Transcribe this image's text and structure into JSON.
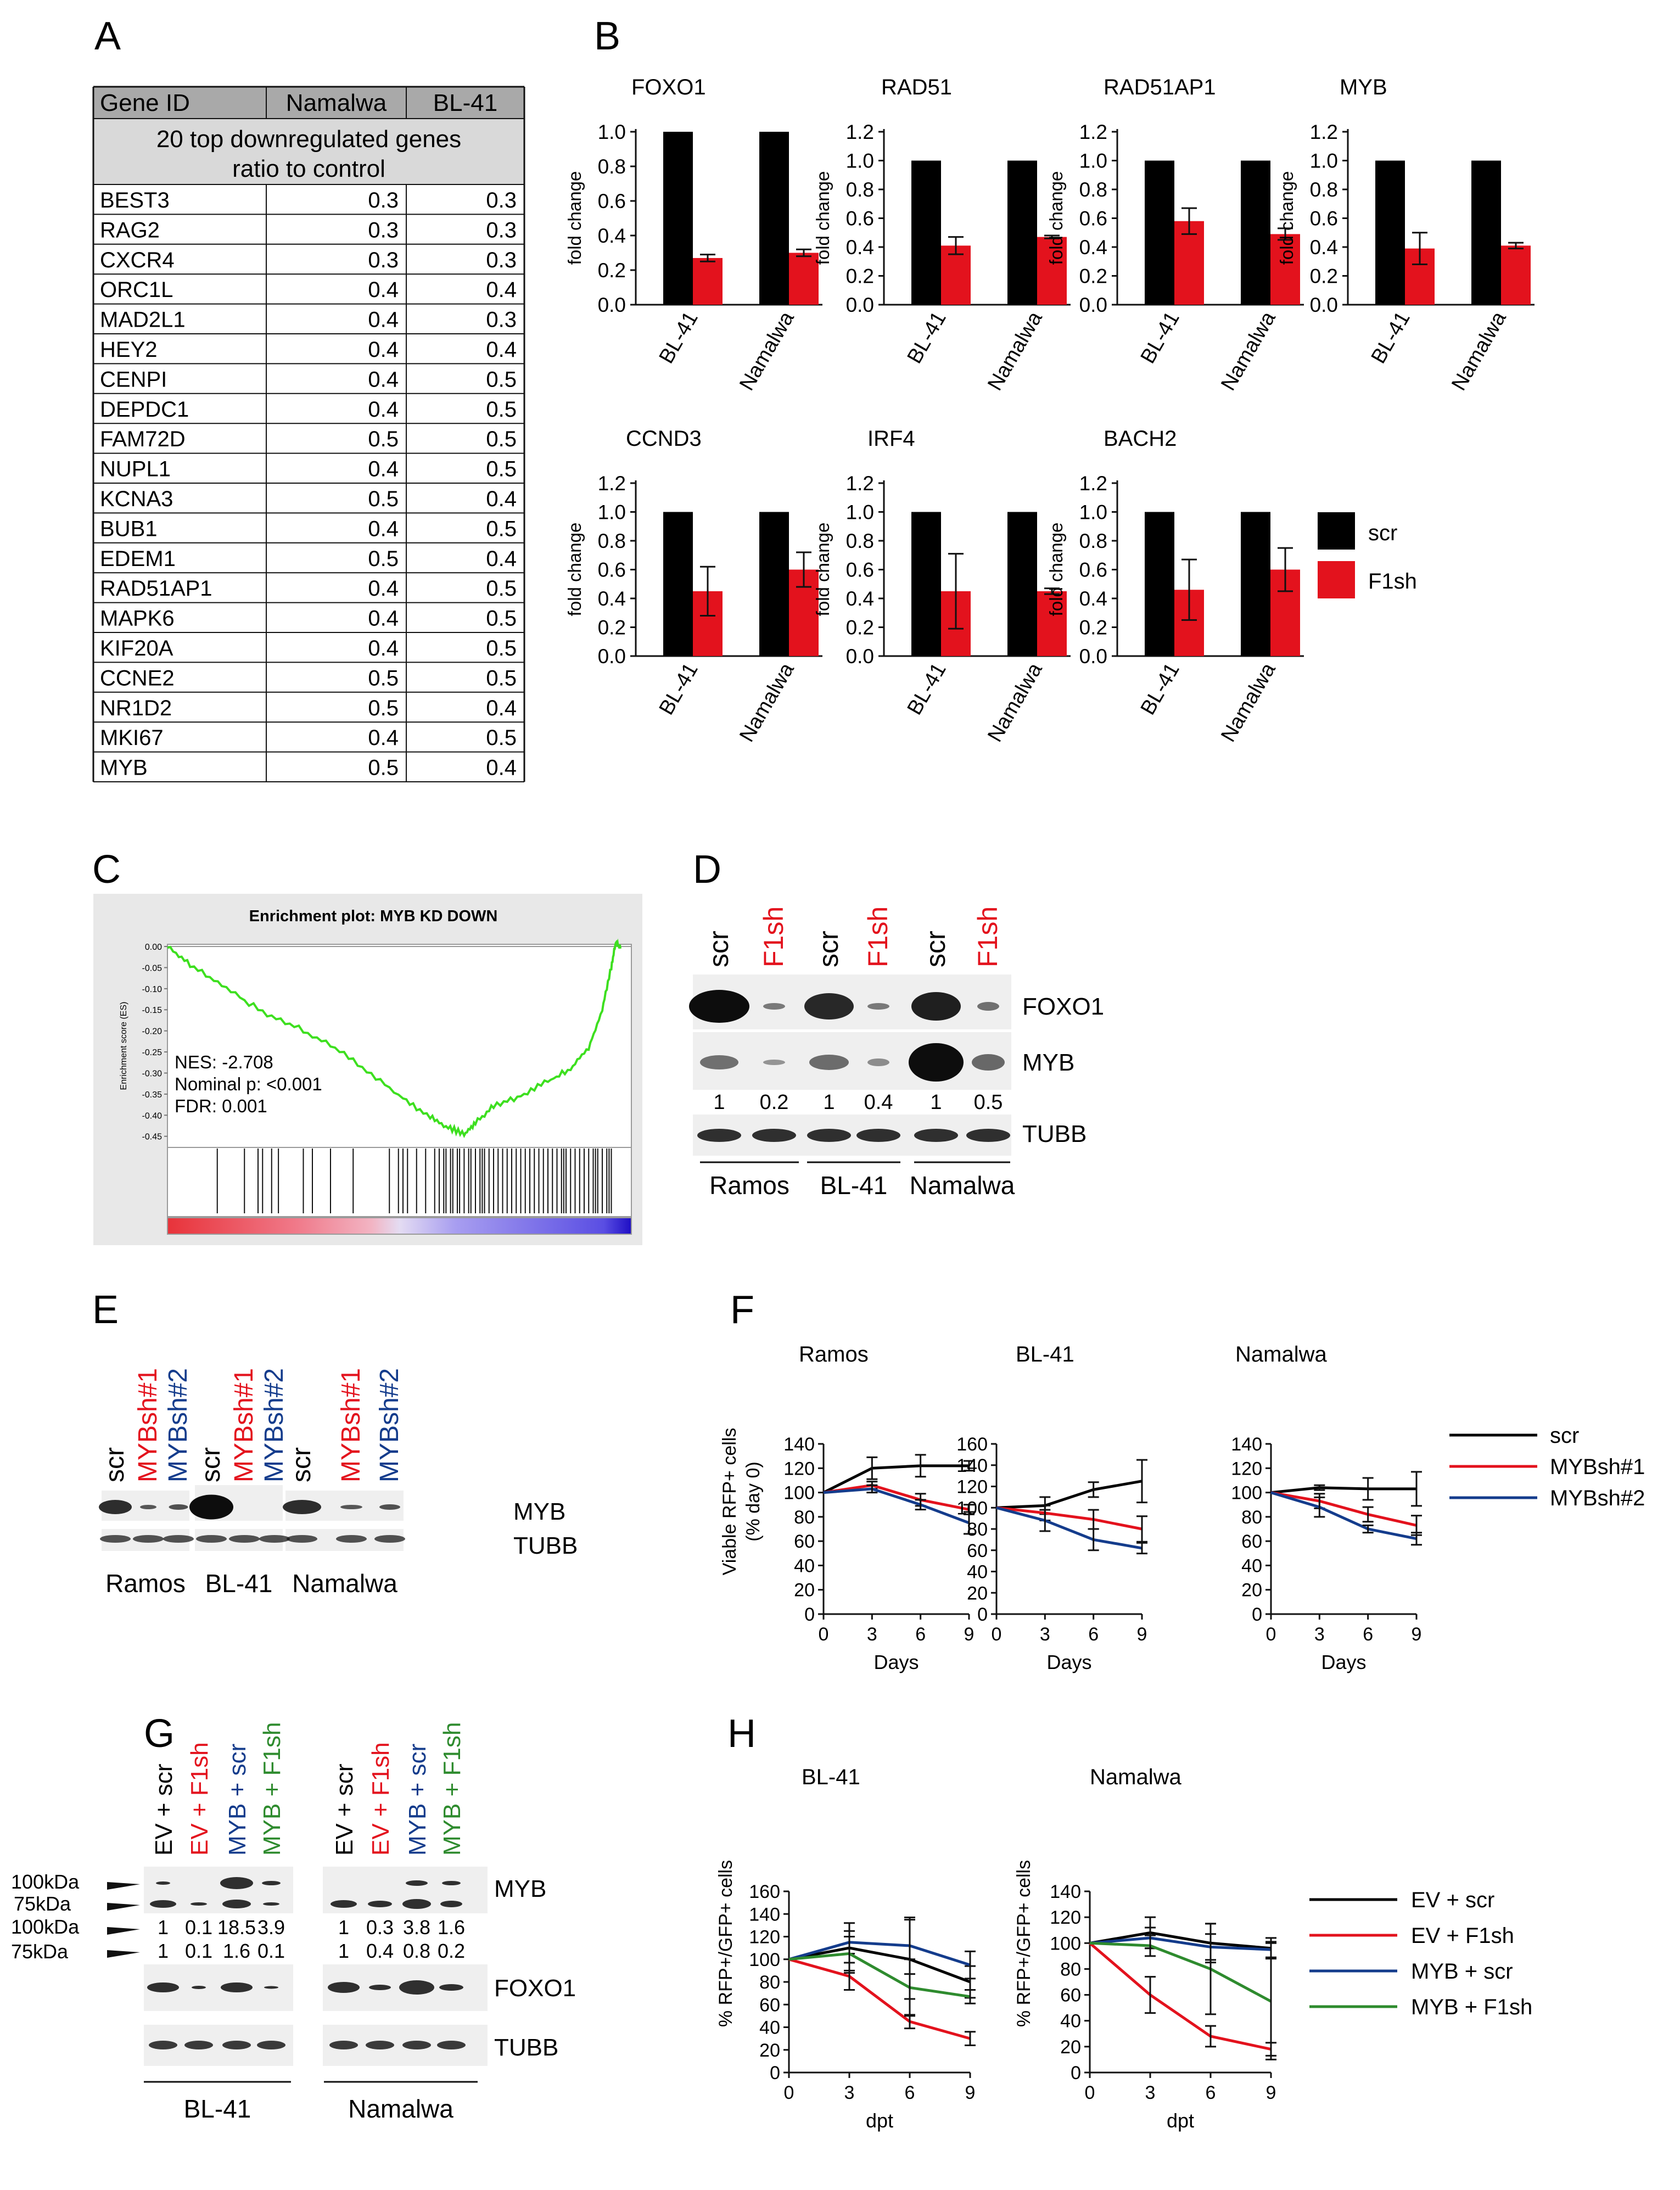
{
  "panel_letters": [
    "A",
    "B",
    "C",
    "D",
    "E",
    "F",
    "G",
    "H"
  ],
  "colors": {
    "scr": "#000000",
    "f1sh": "#e3121d",
    "mybsh1": "#e3121d",
    "mybsh2": "#143c8c",
    "ev_scr": "#000000",
    "ev_f1sh": "#e3121d",
    "myb_scr": "#143c8c",
    "myb_f1sh": "#2e8b2e",
    "table_header_bg": "#a9a9a9",
    "table_subheader_bg": "#d9d9d9"
  },
  "table": {
    "headers": [
      "Gene ID",
      "Namalwa",
      "BL-41"
    ],
    "subheader_line1": "20 top downregulated genes",
    "subheader_line2": "ratio to control",
    "rows": [
      [
        "BEST3",
        "0.3",
        "0.3"
      ],
      [
        "RAG2",
        "0.3",
        "0.3"
      ],
      [
        "CXCR4",
        "0.3",
        "0.3"
      ],
      [
        "ORC1L",
        "0.4",
        "0.4"
      ],
      [
        "MAD2L1",
        "0.4",
        "0.3"
      ],
      [
        "HEY2",
        "0.4",
        "0.4"
      ],
      [
        "CENPI",
        "0.4",
        "0.5"
      ],
      [
        "DEPDC1",
        "0.4",
        "0.5"
      ],
      [
        "FAM72D",
        "0.5",
        "0.5"
      ],
      [
        "NUPL1",
        "0.4",
        "0.5"
      ],
      [
        "KCNA3",
        "0.5",
        "0.4"
      ],
      [
        "BUB1",
        "0.4",
        "0.5"
      ],
      [
        "EDEM1",
        "0.5",
        "0.4"
      ],
      [
        "RAD51AP1",
        "0.4",
        "0.5"
      ],
      [
        "MAPK6",
        "0.4",
        "0.5"
      ],
      [
        "KIF20A",
        "0.4",
        "0.5"
      ],
      [
        "CCNE2",
        "0.5",
        "0.5"
      ],
      [
        "NR1D2",
        "0.5",
        "0.4"
      ],
      [
        "MKI67",
        "0.4",
        "0.5"
      ],
      [
        "MYB",
        "0.5",
        "0.4"
      ]
    ]
  },
  "panel_b_legend": [
    {
      "label": "scr",
      "color": "#000000"
    },
    {
      "label": "F1sh",
      "color": "#e3121d"
    }
  ],
  "panel_c": {
    "title": "Enrichment plot: MYB KD DOWN",
    "ylabel": "Enrichment score (ES)",
    "ticks": [
      "0.00",
      "-0.05",
      "-0.10",
      "-0.15",
      "-0.20",
      "-0.25",
      "-0.30",
      "-0.35",
      "-0.40",
      "-0.45"
    ],
    "nes": "NES: -2.708",
    "pval": "Nominal p: <0.001",
    "fdr": "FDR: 0.001"
  },
  "panel_d": {
    "lanes": [
      {
        "label": "scr",
        "color": "#000000"
      },
      {
        "label": "F1sh",
        "color": "#e3121d"
      },
      {
        "label": "scr",
        "color": "#000000"
      },
      {
        "label": "F1sh",
        "color": "#e3121d"
      },
      {
        "label": "scr",
        "color": "#000000"
      },
      {
        "label": "F1sh",
        "color": "#e3121d"
      }
    ],
    "blots": [
      "FOXO1",
      "MYB",
      "TUBB"
    ],
    "quant": [
      "1",
      "0.2",
      "1",
      "0.4",
      "1",
      "0.5"
    ],
    "groups": [
      "Ramos",
      "BL-41",
      "Namalwa"
    ]
  },
  "panel_e": {
    "lanes": [
      {
        "label": "scr",
        "color": "#000000"
      },
      {
        "label": "MYBsh#1",
        "color": "#e3121d"
      },
      {
        "label": "MYBsh#2",
        "color": "#143c8c"
      }
    ],
    "blots": [
      "MYB",
      "TUBB"
    ],
    "groups": [
      "Ramos",
      "BL-41",
      "Namalwa"
    ]
  },
  "panel_f_ylabel_1": "Viable RFP+ cells",
  "panel_f_ylabel_2": "(% day 0)",
  "panel_f_xlabel": "Days",
  "panel_f_legend": [
    {
      "label": "scr",
      "color": "#000000"
    },
    {
      "label": "MYBsh#1",
      "color": "#e3121d"
    },
    {
      "label": "MYBsh#2",
      "color": "#143c8c"
    }
  ],
  "panel_g": {
    "lanes": [
      {
        "label": "EV + scr",
        "color": "#000000"
      },
      {
        "label": "EV + F1sh",
        "color": "#e3121d"
      },
      {
        "label": "MYB + scr",
        "color": "#143c8c"
      },
      {
        "label": "MYB + F1sh",
        "color": "#2e8b2e"
      }
    ],
    "size_labels": [
      "100kDa",
      "75kDa"
    ],
    "blots": [
      "MYB",
      "FOXO1",
      "TUBB"
    ],
    "quant_100": [
      "1",
      "0.1",
      "18.5",
      "3.9",
      "1",
      "0.3",
      "3.8",
      "1.6"
    ],
    "quant_75": [
      "1",
      "0.1",
      "1.6",
      "0.1",
      "1",
      "0.4",
      "0.8",
      "0.2"
    ],
    "groups": [
      "BL-41",
      "Namalwa"
    ]
  },
  "panel_h_ylabel": "% RFP+/GFP+ cells",
  "panel_h_xlabel": "dpt",
  "panel_h_legend": [
    {
      "label": "EV + scr",
      "color": "#000000"
    },
    {
      "label": "EV + F1sh",
      "color": "#e3121d"
    },
    {
      "label": "MYB + scr",
      "color": "#143c8c"
    },
    {
      "label": "MYB + F1sh",
      "color": "#2e8b2e"
    }
  ],
  "chart_data": [
    {
      "id": "B-FOXO1",
      "type": "bar",
      "title": "FOXO1",
      "ylabel": "fold change",
      "categories": [
        "BL-41",
        "Namalwa"
      ],
      "ylim": [
        0,
        1.0
      ],
      "yticks": [
        "0.0",
        "0.2",
        "0.4",
        "0.6",
        "0.8",
        "1.0"
      ],
      "series": [
        {
          "name": "scr",
          "values": [
            1.0,
            1.0
          ],
          "errors": [
            0,
            0
          ]
        },
        {
          "name": "F1sh",
          "values": [
            0.27,
            0.3
          ],
          "errors": [
            0.02,
            0.02
          ]
        }
      ]
    },
    {
      "id": "B-RAD51",
      "type": "bar",
      "title": "RAD51",
      "ylabel": "fold change",
      "categories": [
        "BL-41",
        "Namalwa"
      ],
      "ylim": [
        0,
        1.2
      ],
      "yticks": [
        "0.0",
        "0.2",
        "0.4",
        "0.6",
        "0.8",
        "1.0",
        "1.2"
      ],
      "series": [
        {
          "name": "scr",
          "values": [
            1.0,
            1.0
          ],
          "errors": [
            0,
            0
          ]
        },
        {
          "name": "F1sh",
          "values": [
            0.41,
            0.47
          ],
          "errors": [
            0.06,
            0.01
          ]
        }
      ]
    },
    {
      "id": "B-RAD51AP1",
      "type": "bar",
      "title": "RAD51AP1",
      "ylabel": "fold change",
      "categories": [
        "BL-41",
        "Namalwa"
      ],
      "ylim": [
        0,
        1.2
      ],
      "yticks": [
        "0.0",
        "0.2",
        "0.4",
        "0.6",
        "0.8",
        "1.0",
        "1.2"
      ],
      "series": [
        {
          "name": "scr",
          "values": [
            1.0,
            1.0
          ],
          "errors": [
            0,
            0
          ]
        },
        {
          "name": "F1sh",
          "values": [
            0.58,
            0.49
          ],
          "errors": [
            0.09,
            0.04
          ]
        }
      ]
    },
    {
      "id": "B-MYB",
      "type": "bar",
      "title": "MYB",
      "ylabel": "fold change",
      "categories": [
        "BL-41",
        "Namalwa"
      ],
      "ylim": [
        0,
        1.2
      ],
      "yticks": [
        "0.0",
        "0.2",
        "0.4",
        "0.6",
        "0.8",
        "1.0",
        "1.2"
      ],
      "series": [
        {
          "name": "scr",
          "values": [
            1.0,
            1.0
          ],
          "errors": [
            0,
            0
          ]
        },
        {
          "name": "F1sh",
          "values": [
            0.39,
            0.41
          ],
          "errors": [
            0.11,
            0.02
          ]
        }
      ]
    },
    {
      "id": "B-CCND3",
      "type": "bar",
      "title": "CCND3",
      "ylabel": "fold change",
      "categories": [
        "BL-41",
        "Namalwa"
      ],
      "ylim": [
        0,
        1.2
      ],
      "yticks": [
        "0.0",
        "0.2",
        "0.4",
        "0.6",
        "0.8",
        "1.0",
        "1.2"
      ],
      "series": [
        {
          "name": "scr",
          "values": [
            1.0,
            1.0
          ],
          "errors": [
            0,
            0
          ]
        },
        {
          "name": "F1sh",
          "values": [
            0.45,
            0.6
          ],
          "errors": [
            0.17,
            0.12
          ]
        }
      ]
    },
    {
      "id": "B-IRF4",
      "type": "bar",
      "title": "IRF4",
      "ylabel": "fold change",
      "categories": [
        "BL-41",
        "Namalwa"
      ],
      "ylim": [
        0,
        1.2
      ],
      "yticks": [
        "0.0",
        "0.2",
        "0.4",
        "0.6",
        "0.8",
        "1.0",
        "1.2"
      ],
      "series": [
        {
          "name": "scr",
          "values": [
            1.0,
            1.0
          ],
          "errors": [
            0,
            0
          ]
        },
        {
          "name": "F1sh",
          "values": [
            0.45,
            0.45
          ],
          "errors": [
            0.26,
            0.02
          ]
        }
      ]
    },
    {
      "id": "B-BACH2",
      "type": "bar",
      "title": "BACH2",
      "ylabel": "fold change",
      "categories": [
        "BL-41",
        "Namalwa"
      ],
      "ylim": [
        0,
        1.2
      ],
      "yticks": [
        "0.0",
        "0.2",
        "0.4",
        "0.6",
        "0.8",
        "1.0",
        "1.2"
      ],
      "series": [
        {
          "name": "scr",
          "values": [
            1.0,
            1.0
          ],
          "errors": [
            0,
            0
          ]
        },
        {
          "name": "F1sh",
          "values": [
            0.46,
            0.6
          ],
          "errors": [
            0.21,
            0.15
          ]
        }
      ]
    },
    {
      "id": "F-Ramos",
      "type": "line",
      "title": "Ramos",
      "x": [
        0,
        3,
        6,
        9
      ],
      "ylim": [
        0,
        140
      ],
      "xticks": [
        "0",
        "3",
        "6",
        "9"
      ],
      "yticks": [
        "0",
        "20",
        "40",
        "60",
        "80",
        "100",
        "120",
        "140"
      ],
      "series": [
        {
          "name": "scr",
          "values": [
            100,
            120,
            122,
            122
          ],
          "errors": [
            0,
            9,
            9,
            4
          ]
        },
        {
          "name": "MYBsh#1",
          "values": [
            100,
            106,
            94,
            86
          ],
          "errors": [
            0,
            3,
            5,
            4
          ]
        },
        {
          "name": "MYBsh#2",
          "values": [
            100,
            103,
            90,
            75
          ],
          "errors": [
            0,
            3,
            4,
            9
          ]
        }
      ]
    },
    {
      "id": "F-BL-41",
      "type": "line",
      "title": "BL-41",
      "x": [
        0,
        3,
        6,
        9
      ],
      "ylim": [
        0,
        160
      ],
      "xticks": [
        "0",
        "3",
        "6",
        "9"
      ],
      "yticks": [
        "0",
        "20",
        "40",
        "60",
        "80",
        "100",
        "120",
        "140",
        "160"
      ],
      "series": [
        {
          "name": "scr",
          "values": [
            100,
            102,
            117,
            125
          ],
          "errors": [
            0,
            8,
            7,
            20
          ]
        },
        {
          "name": "MYBsh#1",
          "values": [
            100,
            95,
            89,
            80
          ],
          "errors": [
            0,
            7,
            9,
            12
          ]
        },
        {
          "name": "MYBsh#2",
          "values": [
            100,
            88,
            70,
            62
          ],
          "errors": [
            0,
            10,
            10,
            5
          ]
        }
      ]
    },
    {
      "id": "F-Namalwa",
      "type": "line",
      "title": "Namalwa",
      "x": [
        0,
        3,
        6,
        9
      ],
      "ylim": [
        0,
        140
      ],
      "xticks": [
        "0",
        "3",
        "6",
        "9"
      ],
      "yticks": [
        "0",
        "20",
        "40",
        "60",
        "80",
        "100",
        "120",
        "140"
      ],
      "series": [
        {
          "name": "scr",
          "values": [
            100,
            104,
            103,
            103
          ],
          "errors": [
            0,
            2,
            9,
            14
          ]
        },
        {
          "name": "MYBsh#1",
          "values": [
            100,
            93,
            82,
            73
          ],
          "errors": [
            0,
            6,
            6,
            8
          ]
        },
        {
          "name": "MYBsh#2",
          "values": [
            100,
            88,
            70,
            62
          ],
          "errors": [
            0,
            8,
            3,
            5
          ]
        }
      ]
    },
    {
      "id": "H-BL-41",
      "type": "line",
      "title": "BL-41",
      "x": [
        0,
        3,
        6,
        9
      ],
      "ylim": [
        0,
        160
      ],
      "xticks": [
        "0",
        "3",
        "6",
        "9"
      ],
      "yticks": [
        "0",
        "20",
        "40",
        "60",
        "80",
        "100",
        "120",
        "140",
        "160"
      ],
      "series": [
        {
          "name": "EV + scr",
          "values": [
            100,
            110,
            100,
            80
          ],
          "errors": [
            0,
            22,
            35,
            14
          ]
        },
        {
          "name": "EV + F1sh",
          "values": [
            100,
            85,
            45,
            30
          ],
          "errors": [
            0,
            12,
            6,
            6
          ]
        },
        {
          "name": "MYB + scr",
          "values": [
            100,
            115,
            112,
            95
          ],
          "errors": [
            0,
            10,
            25,
            12
          ]
        },
        {
          "name": "MYB + F1sh",
          "values": [
            100,
            105,
            75,
            67
          ],
          "errors": [
            0,
            15,
            25,
            6
          ]
        }
      ]
    },
    {
      "id": "H-Namalwa",
      "type": "line",
      "title": "Namalwa",
      "x": [
        0,
        3,
        6,
        9
      ],
      "ylim": [
        0,
        140
      ],
      "xticks": [
        "0",
        "3",
        "6",
        "9"
      ],
      "yticks": [
        "0",
        "20",
        "40",
        "60",
        "80",
        "100",
        "120",
        "140"
      ],
      "series": [
        {
          "name": "EV + scr",
          "values": [
            100,
            108,
            100,
            96
          ],
          "errors": [
            0,
            12,
            15,
            8
          ]
        },
        {
          "name": "EV + F1sh",
          "values": [
            100,
            60,
            28,
            18
          ],
          "errors": [
            0,
            14,
            8,
            5
          ]
        },
        {
          "name": "MYB + scr",
          "values": [
            100,
            104,
            97,
            95
          ],
          "errors": [
            0,
            8,
            10,
            6
          ]
        },
        {
          "name": "MYB + F1sh",
          "values": [
            100,
            98,
            80,
            55
          ],
          "errors": [
            0,
            8,
            35,
            45
          ]
        }
      ]
    }
  ]
}
